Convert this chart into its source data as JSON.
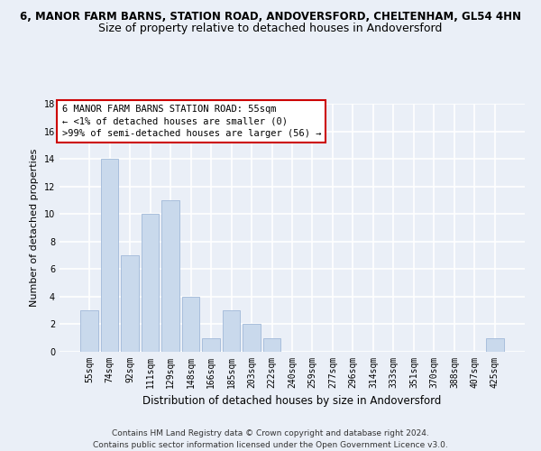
{
  "title1": "6, MANOR FARM BARNS, STATION ROAD, ANDOVERSFORD, CHELTENHAM, GL54 4HN",
  "title2": "Size of property relative to detached houses in Andoversford",
  "xlabel": "Distribution of detached houses by size in Andoversford",
  "ylabel": "Number of detached properties",
  "categories": [
    "55sqm",
    "74sqm",
    "92sqm",
    "111sqm",
    "129sqm",
    "148sqm",
    "166sqm",
    "185sqm",
    "203sqm",
    "222sqm",
    "240sqm",
    "259sqm",
    "277sqm",
    "296sqm",
    "314sqm",
    "333sqm",
    "351sqm",
    "370sqm",
    "388sqm",
    "407sqm",
    "425sqm"
  ],
  "values": [
    3,
    14,
    7,
    10,
    11,
    4,
    1,
    3,
    2,
    1,
    0,
    0,
    0,
    0,
    0,
    0,
    0,
    0,
    0,
    0,
    1
  ],
  "bar_color": "#c9d9ec",
  "bar_edge_color": "#a0b8d8",
  "ylim": [
    0,
    18
  ],
  "yticks": [
    0,
    2,
    4,
    6,
    8,
    10,
    12,
    14,
    16,
    18
  ],
  "annotation_box_text": "6 MANOR FARM BARNS STATION ROAD: 55sqm\n← <1% of detached houses are smaller (0)\n>99% of semi-detached houses are larger (56) →",
  "annotation_box_color": "#ffffff",
  "annotation_box_edgecolor": "#cc0000",
  "footnote": "Contains HM Land Registry data © Crown copyright and database right 2024.\nContains public sector information licensed under the Open Government Licence v3.0.",
  "bg_color": "#eaeff7",
  "plot_bg_color": "#eaeff7",
  "grid_color": "#ffffff",
  "title1_fontsize": 8.5,
  "title2_fontsize": 9,
  "xlabel_fontsize": 8.5,
  "ylabel_fontsize": 8,
  "tick_fontsize": 7,
  "annot_fontsize": 7.5,
  "footnote_fontsize": 6.5
}
